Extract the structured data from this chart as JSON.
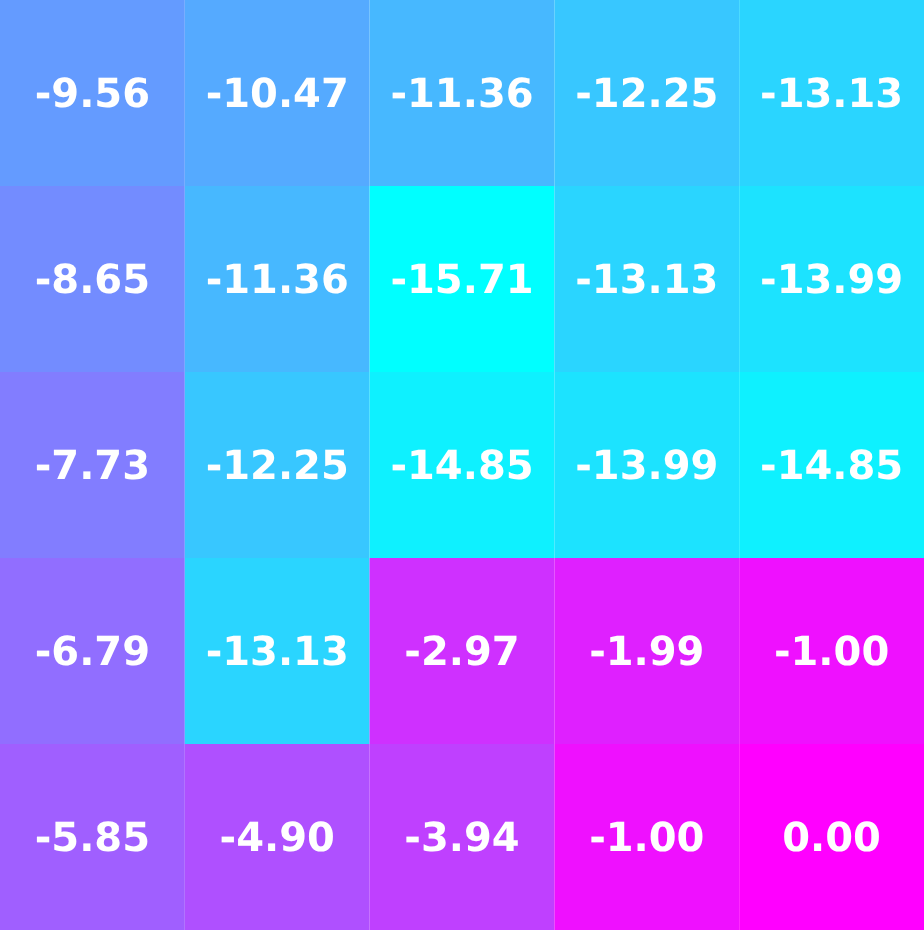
{
  "chart_data": {
    "type": "heatmap",
    "categories": [
      null,
      null,
      null,
      null,
      null
    ],
    "y_categories": [
      null,
      null,
      null,
      null,
      null
    ],
    "cells": [
      [
        -9.56,
        -10.47,
        -11.36,
        -12.25,
        -13.13
      ],
      [
        -8.65,
        -11.36,
        -15.71,
        -13.13,
        -13.99
      ],
      [
        -7.73,
        -12.25,
        -14.85,
        -13.99,
        -14.85
      ],
      [
        -6.79,
        -13.13,
        -2.97,
        -1.99,
        -1.0
      ],
      [
        -5.85,
        -4.9,
        -3.94,
        -1.0,
        0.0
      ]
    ],
    "cell_labels": [
      [
        "-9.56",
        "-10.47",
        "-11.36",
        "-12.25",
        "-13.13"
      ],
      [
        "-8.65",
        "-11.36",
        "-15.71",
        "-13.13",
        "-13.99"
      ],
      [
        "-7.73",
        "-12.25",
        "-14.85",
        "-13.99",
        "-14.85"
      ],
      [
        "-6.79",
        "-13.13",
        "-2.97",
        "-1.99",
        "-1.00"
      ],
      [
        "-5.85",
        "-4.90",
        "-3.94",
        "-1.00",
        "0.00"
      ]
    ]
  }
}
